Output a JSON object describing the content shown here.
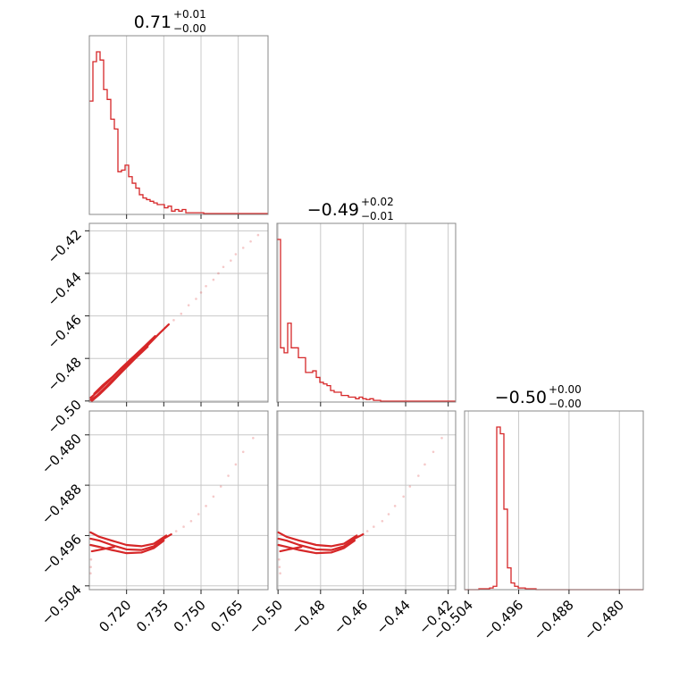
{
  "chart_data": {
    "type": "corner",
    "color": "#d62728",
    "parameters": [
      {
        "title_value": "0.71",
        "title_plus": "+0.01",
        "title_minus": "−0.00",
        "range": [
          0.705,
          0.777
        ],
        "ticks": [
          {
            "v": 0.72,
            "label": "0.720"
          },
          {
            "v": 0.735,
            "label": "0.735"
          },
          {
            "v": 0.75,
            "label": "0.750"
          },
          {
            "v": 0.765,
            "label": "0.765"
          }
        ]
      },
      {
        "title_value": "−0.49",
        "title_plus": "+0.02",
        "title_minus": "−0.01",
        "range": [
          -0.5005,
          -0.4165
        ],
        "ticks": [
          {
            "v": -0.5,
            "label": "−0.50"
          },
          {
            "v": -0.48,
            "label": "−0.48"
          },
          {
            "v": -0.46,
            "label": "−0.46"
          },
          {
            "v": -0.44,
            "label": "−0.44"
          },
          {
            "v": -0.42,
            "label": "−0.42"
          }
        ]
      },
      {
        "title_value": "−0.50",
        "title_plus": "+0.00",
        "title_minus": "−0.00",
        "range": [
          -0.5046,
          -0.4762
        ],
        "ticks": [
          {
            "v": -0.504,
            "label": "−0.504"
          },
          {
            "v": -0.496,
            "label": "−0.496"
          },
          {
            "v": -0.488,
            "label": "−0.488"
          },
          {
            "v": -0.48,
            "label": "−0.480"
          }
        ]
      }
    ],
    "histograms": [
      {
        "param": 0,
        "bin_start": 0.705,
        "bin_width": 0.00144,
        "counts": [
          69,
          93,
          99,
          94,
          76,
          70,
          58,
          52,
          26,
          27,
          30,
          23,
          19,
          16,
          12,
          10,
          9,
          8,
          7,
          6,
          6,
          4,
          5,
          2,
          3,
          2,
          3,
          1,
          1,
          1,
          1,
          1,
          0.5,
          0.5,
          0.5,
          0.5,
          0.5,
          0.5,
          0.5,
          0.5,
          0.5,
          0.5,
          0.5,
          0.5,
          0.5,
          0.5,
          0.5,
          0.5,
          0.5,
          0.5
        ]
      },
      {
        "param": 1,
        "bin_start": -0.5005,
        "bin_width": 0.00168,
        "counts": [
          99,
          33,
          30,
          48,
          33,
          33,
          27,
          27,
          18,
          18,
          19,
          15,
          12,
          11,
          10,
          7,
          6,
          6,
          4,
          4,
          3,
          3,
          2,
          3,
          2,
          1.5,
          2,
          1,
          1,
          0.5,
          0.5,
          0.5,
          0.5,
          0.5,
          0.5,
          0.5,
          0.5,
          0.5,
          0.5,
          0.5,
          0.5,
          0.5,
          0.5,
          0.5,
          0.5,
          0.5,
          0.5,
          0.5,
          0.5,
          0.5
        ]
      },
      {
        "param": 2,
        "bin_start": -0.5046,
        "bin_width": 0.000568,
        "counts": [
          0,
          0,
          0,
          0,
          0.5,
          0.5,
          0.5,
          1,
          2,
          97,
          93,
          48,
          13,
          4,
          2,
          1,
          1,
          0.5,
          0.5,
          0.5,
          0,
          0,
          0,
          0,
          0,
          0,
          0,
          0,
          0,
          0,
          0,
          0,
          0,
          0,
          0,
          0,
          0,
          0,
          0,
          0,
          0,
          0,
          0,
          0,
          0,
          0,
          0,
          0,
          0,
          0
        ]
      }
    ],
    "scatter_panels": [
      {
        "x_param": 0,
        "y_param": 1,
        "contours": [
          [
            [
              0.7055,
              -0.4995
            ],
            [
              0.708,
              -0.4975
            ],
            [
              0.712,
              -0.493
            ],
            [
              0.717,
              -0.487
            ],
            [
              0.722,
              -0.481
            ],
            [
              0.728,
              -0.4745
            ],
            [
              0.733,
              -0.4685
            ],
            [
              0.737,
              -0.464
            ]
          ],
          [
            [
              0.7055,
              -0.4985
            ],
            [
              0.7085,
              -0.4955
            ],
            [
              0.7125,
              -0.491
            ],
            [
              0.7175,
              -0.485
            ],
            [
              0.7225,
              -0.4795
            ],
            [
              0.7275,
              -0.474
            ],
            [
              0.7315,
              -0.4695
            ]
          ],
          [
            [
              0.706,
              -0.5
            ],
            [
              0.709,
              -0.497
            ],
            [
              0.713,
              -0.4925
            ],
            [
              0.718,
              -0.4865
            ],
            [
              0.7235,
              -0.48
            ],
            [
              0.7285,
              -0.4745
            ]
          ],
          [
            [
              0.707,
              -0.4965
            ],
            [
              0.7105,
              -0.4925
            ],
            [
              0.7145,
              -0.4885
            ],
            [
              0.7185,
              -0.484
            ],
            [
              0.7225,
              -0.4795
            ]
          ]
        ],
        "points": [
          [
            0.739,
            -0.462
          ],
          [
            0.742,
            -0.459
          ],
          [
            0.745,
            -0.455
          ],
          [
            0.748,
            -0.452
          ],
          [
            0.75,
            -0.449
          ],
          [
            0.752,
            -0.446
          ],
          [
            0.755,
            -0.443
          ],
          [
            0.757,
            -0.44
          ],
          [
            0.759,
            -0.437
          ],
          [
            0.762,
            -0.434
          ],
          [
            0.764,
            -0.431
          ],
          [
            0.767,
            -0.428
          ],
          [
            0.77,
            -0.425
          ],
          [
            0.773,
            -0.422
          ]
        ]
      },
      {
        "x_param": 0,
        "y_param": 2,
        "contours": [
          [
            [
              0.7055,
              -0.4965
            ],
            [
              0.709,
              -0.4968
            ],
            [
              0.714,
              -0.4975
            ],
            [
              0.72,
              -0.4982
            ],
            [
              0.726,
              -0.4983
            ],
            [
              0.731,
              -0.4977
            ],
            [
              0.735,
              -0.4965
            ],
            [
              0.738,
              -0.4958
            ]
          ],
          [
            [
              0.7055,
              -0.4975
            ],
            [
              0.709,
              -0.4978
            ],
            [
              0.714,
              -0.4983
            ],
            [
              0.72,
              -0.4988
            ],
            [
              0.726,
              -0.4987
            ],
            [
              0.731,
              -0.498
            ],
            [
              0.735,
              -0.4968
            ]
          ],
          [
            [
              0.7055,
              -0.4955
            ],
            [
              0.709,
              -0.4962
            ],
            [
              0.714,
              -0.4968
            ],
            [
              0.72,
              -0.4975
            ],
            [
              0.726,
              -0.4977
            ],
            [
              0.731,
              -0.4973
            ],
            [
              0.736,
              -0.496
            ]
          ],
          [
            [
              0.706,
              -0.4985
            ],
            [
              0.71,
              -0.4982
            ],
            [
              0.715,
              -0.4978
            ]
          ]
        ],
        "points": [
          [
            0.74,
            -0.4953
          ],
          [
            0.743,
            -0.4946
          ],
          [
            0.746,
            -0.4937
          ],
          [
            0.749,
            -0.4926
          ],
          [
            0.752,
            -0.4913
          ],
          [
            0.755,
            -0.4898
          ],
          [
            0.758,
            -0.4882
          ],
          [
            0.761,
            -0.4865
          ],
          [
            0.764,
            -0.4847
          ],
          [
            0.767,
            -0.4827
          ],
          [
            0.771,
            -0.4805
          ],
          [
            0.7057,
            -0.4998
          ],
          [
            0.7056,
            -0.501
          ],
          [
            0.7055,
            -0.502
          ]
        ]
      },
      {
        "x_param": 1,
        "y_param": 2,
        "contours": [
          [
            [
              -0.4998,
              -0.4965
            ],
            [
              -0.496,
              -0.4968
            ],
            [
              -0.49,
              -0.4975
            ],
            [
              -0.482,
              -0.4982
            ],
            [
              -0.475,
              -0.4983
            ],
            [
              -0.469,
              -0.4977
            ],
            [
              -0.464,
              -0.4965
            ],
            [
              -0.46,
              -0.4958
            ]
          ],
          [
            [
              -0.4998,
              -0.4975
            ],
            [
              -0.496,
              -0.4978
            ],
            [
              -0.49,
              -0.4983
            ],
            [
              -0.482,
              -0.4988
            ],
            [
              -0.475,
              -0.4987
            ],
            [
              -0.469,
              -0.498
            ],
            [
              -0.464,
              -0.4968
            ]
          ],
          [
            [
              -0.4998,
              -0.4955
            ],
            [
              -0.496,
              -0.4962
            ],
            [
              -0.49,
              -0.4968
            ],
            [
              -0.482,
              -0.4975
            ],
            [
              -0.475,
              -0.4977
            ],
            [
              -0.469,
              -0.4973
            ],
            [
              -0.463,
              -0.496
            ]
          ],
          [
            [
              -0.499,
              -0.4985
            ],
            [
              -0.495,
              -0.4982
            ],
            [
              -0.489,
              -0.4978
            ]
          ]
        ],
        "points": [
          [
            -0.458,
            -0.4953
          ],
          [
            -0.455,
            -0.4946
          ],
          [
            -0.451,
            -0.4937
          ],
          [
            -0.448,
            -0.4926
          ],
          [
            -0.445,
            -0.4913
          ],
          [
            -0.441,
            -0.4898
          ],
          [
            -0.438,
            -0.4882
          ],
          [
            -0.434,
            -0.4865
          ],
          [
            -0.431,
            -0.4847
          ],
          [
            -0.427,
            -0.4827
          ],
          [
            -0.423,
            -0.4805
          ],
          [
            -0.4995,
            -0.4998
          ],
          [
            -0.4993,
            -0.501
          ],
          [
            -0.499,
            -0.502
          ]
        ]
      }
    ]
  }
}
